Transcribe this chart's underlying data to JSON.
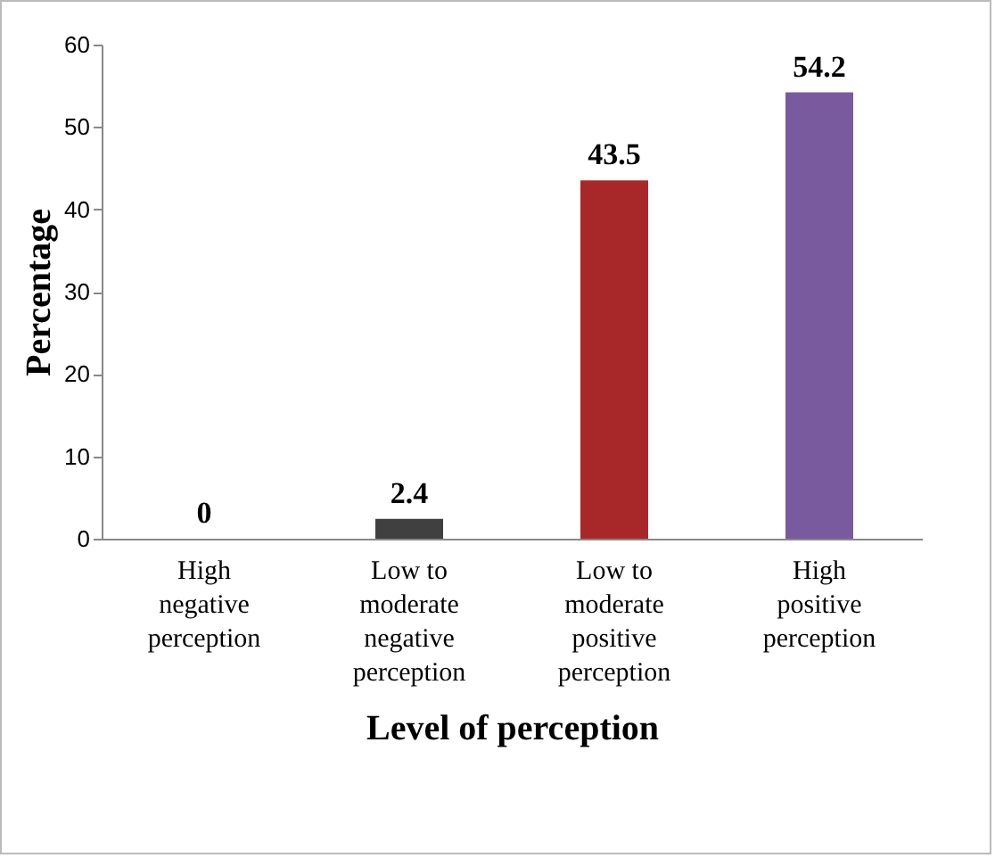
{
  "chart_data": {
    "type": "bar",
    "xlabel": "Level of perception",
    "ylabel": "Percentage",
    "categories": [
      "High negative perception",
      "Low to moderate negative perception",
      "Low to moderate positive perception",
      "High positive perception"
    ],
    "values": [
      0,
      2.4,
      43.5,
      54.2
    ],
    "colors": [
      "#404040",
      "#404040",
      "#a8282a",
      "#7a5a9e"
    ],
    "ylim": [
      0,
      60
    ],
    "yticks": [
      0,
      10,
      20,
      30,
      40,
      50,
      60
    ],
    "grid": false,
    "data_labels": true
  }
}
